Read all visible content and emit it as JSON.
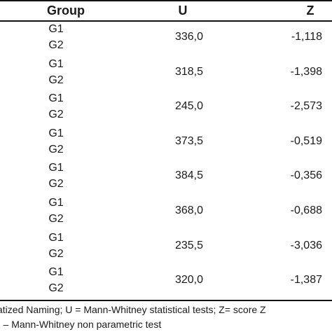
{
  "table": {
    "headers": {
      "group": "Group",
      "u": "U",
      "z": "Z"
    },
    "rows": [
      {
        "g1": "G1",
        "g2": "G2",
        "u": "336,0",
        "z": "-1,118"
      },
      {
        "g1": "G1",
        "g2": "G2",
        "u": "318,5",
        "z": "-1,398"
      },
      {
        "g1": "G1",
        "g2": "G2",
        "u": "245,0",
        "z": "-2,573"
      },
      {
        "g1": "G1",
        "g2": "G2",
        "u": "373,5",
        "z": "-0,519"
      },
      {
        "g1": "G1",
        "g2": "G2",
        "u": "384,5",
        "z": "-0,356"
      },
      {
        "g1": "G1",
        "g2": "G2",
        "u": "368,0",
        "z": "-0,688"
      },
      {
        "g1": "G1",
        "g2": "G2",
        "u": "235,5",
        "z": "-3,036"
      },
      {
        "g1": "G1",
        "g2": "G2",
        "u": "320,0",
        "z": "-1,387"
      }
    ]
  },
  "footnotes": {
    "line1": "atized Naming; U = Mann-Whitney statistical tests; Z= score Z",
    "line2": ") – Mann-Whitney non parametric test"
  }
}
